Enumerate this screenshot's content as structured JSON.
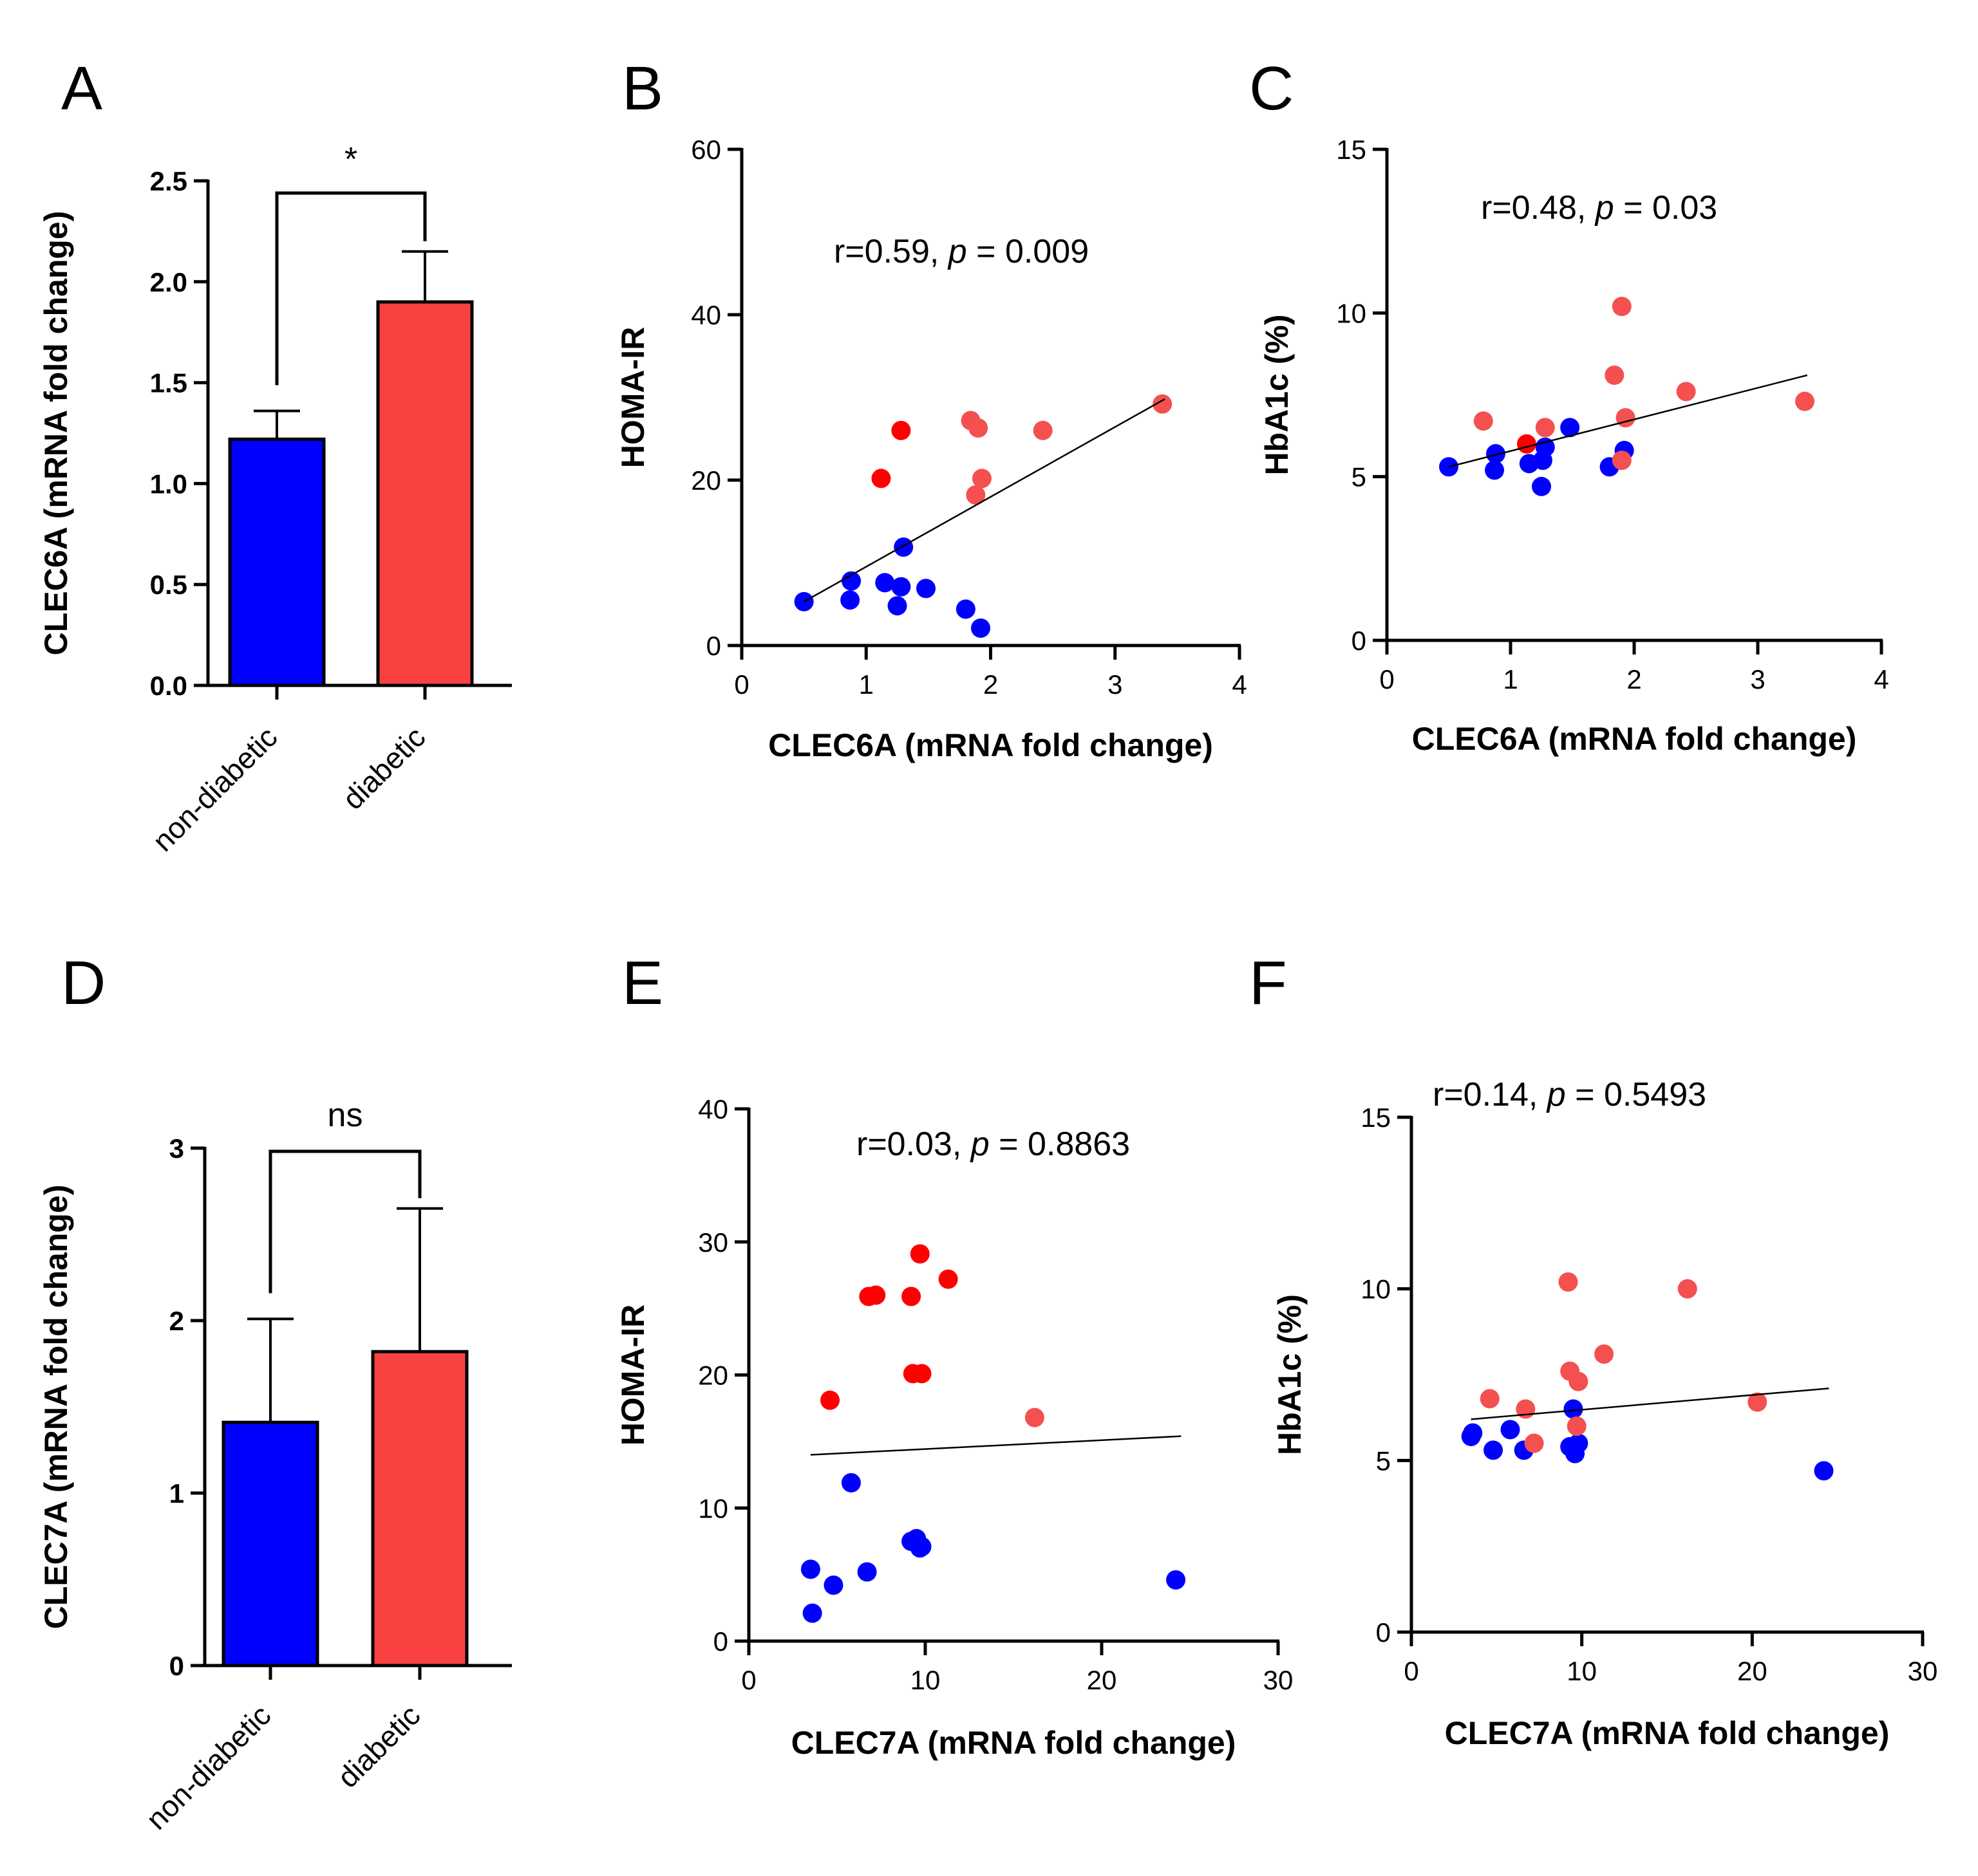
{
  "colors": {
    "non_diabetic": "#0000ff",
    "diabetic_bar": "#f94141",
    "diabetic_point": "#f45050",
    "diabetic_point_dark": "#ff0000"
  },
  "chart_data": [
    {
      "panel": "A",
      "type": "bar",
      "ylabel": "CLEC6A (mRNA fold change)",
      "categories": [
        "non-diabetic",
        "diabetic"
      ],
      "values": [
        1.22,
        1.9
      ],
      "errors": [
        0.14,
        0.25
      ],
      "ylim": [
        0,
        2.5
      ],
      "yticks": [
        "0.0",
        "0.5",
        "1.0",
        "1.5",
        "2.0",
        "2.5"
      ],
      "significance": "*"
    },
    {
      "panel": "B",
      "type": "scatter",
      "xlabel": "CLEC6A (mRNA fold change)",
      "ylabel": "HOMA-IR",
      "xlim": [
        0,
        4
      ],
      "ylim": [
        0,
        60
      ],
      "xticks": [
        "0",
        "1",
        "2",
        "3",
        "4"
      ],
      "yticks": [
        "0",
        "20",
        "40",
        "60"
      ],
      "annotation": {
        "prefix": "r=0.59, ",
        "p": "p",
        "suffix": " = 0.009"
      },
      "fit": {
        "x": [
          0.5,
          3.4
        ],
        "y": [
          5.3,
          29.8
        ]
      },
      "series": [
        {
          "name": "non-diabetic",
          "x": [
            0.5,
            0.88,
            0.87,
            1.15,
            1.28,
            1.25,
            1.3,
            1.48,
            1.8,
            1.92
          ],
          "y": [
            5.3,
            7.8,
            5.5,
            7.6,
            7.1,
            4.8,
            11.9,
            6.9,
            4.4,
            2.1
          ]
        },
        {
          "name": "diabetic",
          "x": [
            1.12,
            1.28,
            1.84,
            1.9,
            1.93,
            1.88,
            2.42,
            3.38
          ],
          "y": [
            20.2,
            26.0,
            27.2,
            26.3,
            20.2,
            18.2,
            26.0,
            29.2
          ]
        }
      ]
    },
    {
      "panel": "C",
      "type": "scatter",
      "xlabel": "CLEC6A (mRNA fold change)",
      "ylabel": "HbA1c (%)",
      "xlim": [
        0,
        4
      ],
      "ylim": [
        0,
        15
      ],
      "xticks": [
        "0",
        "1",
        "2",
        "3",
        "4"
      ],
      "yticks": [
        "0",
        "5",
        "10",
        "15"
      ],
      "annotation": {
        "prefix": "r=0.48, ",
        "p": "p",
        "suffix": " = 0.03"
      },
      "fit": {
        "x": [
          0.5,
          3.4
        ],
        "y": [
          5.3,
          8.1
        ]
      },
      "series": [
        {
          "name": "non-diabetic",
          "x": [
            0.5,
            0.88,
            0.87,
            1.15,
            1.28,
            1.26,
            1.25,
            1.48,
            1.8,
            1.92
          ],
          "y": [
            5.3,
            5.7,
            5.2,
            5.4,
            5.9,
            5.5,
            4.7,
            6.5,
            5.3,
            5.8
          ]
        },
        {
          "name": "diabetic",
          "x": [
            0.78,
            1.13,
            1.28,
            1.84,
            1.9,
            1.93,
            1.9,
            2.42,
            3.38
          ],
          "y": [
            6.7,
            6.0,
            6.5,
            8.1,
            10.2,
            6.8,
            5.5,
            7.6,
            7.3
          ]
        }
      ]
    },
    {
      "panel": "D",
      "type": "bar",
      "ylabel": "CLEC7A (mRNA fold change)",
      "categories": [
        "non-diabetic",
        "diabetic"
      ],
      "values": [
        1.41,
        1.82
      ],
      "errors": [
        0.6,
        0.83
      ],
      "ylim": [
        0,
        3
      ],
      "yticks": [
        "0",
        "1",
        "2",
        "3"
      ],
      "significance": "ns"
    },
    {
      "panel": "E",
      "type": "scatter",
      "xlabel": "CLEC7A (mRNA fold change)",
      "ylabel": "HOMA-IR",
      "xlim": [
        0,
        30
      ],
      "ylim": [
        0,
        40
      ],
      "xticks": [
        "0",
        "10",
        "20",
        "30"
      ],
      "yticks": [
        "0",
        "10",
        "20",
        "30",
        "40"
      ],
      "annotation": {
        "prefix": "r=0.03, ",
        "p": "p",
        "suffix": " = 0.8863"
      },
      "fit": {
        "x": [
          3.5,
          24.5
        ],
        "y": [
          14.0,
          15.4
        ]
      },
      "series": [
        {
          "name": "non-diabetic",
          "x": [
            3.5,
            3.6,
            4.8,
            5.8,
            6.7,
            9.2,
            9.5,
            9.7,
            9.8,
            24.2
          ],
          "y": [
            5.4,
            2.1,
            4.2,
            11.9,
            5.2,
            7.5,
            7.7,
            7.0,
            7.1,
            4.6
          ]
        },
        {
          "name": "diabetic",
          "x": [
            4.6,
            6.8,
            7.2,
            9.2,
            9.3,
            9.8,
            9.7,
            11.3,
            16.2
          ],
          "y": [
            18.1,
            25.9,
            26.0,
            25.9,
            20.1,
            20.1,
            29.1,
            27.2,
            16.8
          ]
        }
      ]
    },
    {
      "panel": "F",
      "type": "scatter",
      "xlabel": "CLEC7A (mRNA fold change)",
      "ylabel": "HbA1c (%)",
      "xlim": [
        0,
        30
      ],
      "ylim": [
        0,
        15
      ],
      "xticks": [
        "0",
        "10",
        "20",
        "30"
      ],
      "yticks": [
        "0",
        "5",
        "10",
        "15"
      ],
      "annotation": {
        "prefix": "r=0.14, ",
        "p": "p",
        "suffix": " = 0.5493"
      },
      "fit": {
        "x": [
          3.5,
          24.5
        ],
        "y": [
          6.2,
          7.1
        ]
      },
      "series": [
        {
          "name": "non-diabetic",
          "x": [
            3.5,
            3.6,
            4.8,
            5.8,
            6.6,
            9.3,
            9.6,
            9.8,
            9.5,
            24.2
          ],
          "y": [
            5.7,
            5.8,
            5.3,
            5.9,
            5.3,
            5.4,
            5.2,
            5.5,
            6.5,
            4.7
          ]
        },
        {
          "name": "diabetic",
          "x": [
            4.6,
            6.7,
            7.2,
            9.2,
            9.3,
            9.8,
            9.7,
            11.3,
            16.2,
            20.3
          ],
          "y": [
            6.8,
            6.5,
            5.5,
            10.2,
            7.6,
            7.3,
            6.0,
            8.1,
            10.0,
            6.7
          ]
        }
      ]
    }
  ]
}
